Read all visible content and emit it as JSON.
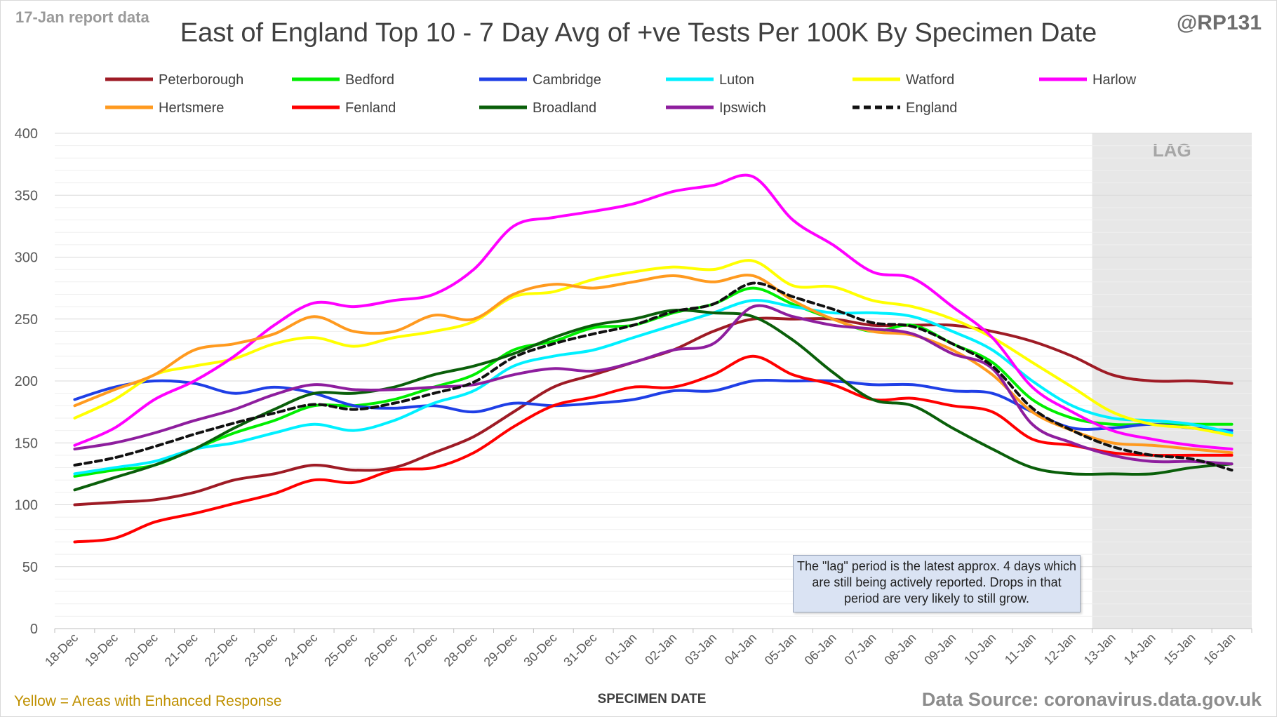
{
  "header": {
    "report_label": "17-Jan report data",
    "handle": "@RP131",
    "title": "East of England Top 10 - 7 Day Avg of +ve Tests Per 100K By Specimen Date"
  },
  "footer": {
    "note": "Yellow = Areas with Enhanced Response",
    "source": "Data Source: coronavirus.data.gov.uk"
  },
  "annotation": {
    "lag_label": "LAG",
    "lag_note": "The \"lag\" period is the latest approx. 4 days which are still being actively reported.  Drops in that period are very likely to still grow."
  },
  "chart_data": {
    "type": "line",
    "title": "East of England Top 10 - 7 Day Avg of +ve Tests Per 100K By Specimen Date",
    "xlabel": "SPECIMEN DATE",
    "ylabel": "",
    "ylim": [
      0,
      400
    ],
    "yticks": [
      0,
      50,
      100,
      150,
      200,
      250,
      300,
      350,
      400
    ],
    "grid": true,
    "legend_position": "top",
    "lag_period": [
      "13-Jan",
      "16-Jan"
    ],
    "categories": [
      "18-Dec",
      "19-Dec",
      "20-Dec",
      "21-Dec",
      "22-Dec",
      "23-Dec",
      "24-Dec",
      "25-Dec",
      "26-Dec",
      "27-Dec",
      "28-Dec",
      "29-Dec",
      "30-Dec",
      "31-Dec",
      "01-Jan",
      "02-Jan",
      "03-Jan",
      "04-Jan",
      "05-Jan",
      "06-Jan",
      "07-Jan",
      "08-Jan",
      "09-Jan",
      "10-Jan",
      "11-Jan",
      "12-Jan",
      "13-Jan",
      "14-Jan",
      "15-Jan",
      "16-Jan"
    ],
    "series": [
      {
        "name": "Peterborough",
        "color": "#9e1b25",
        "dashed": false,
        "values": [
          100,
          102,
          104,
          110,
          120,
          125,
          132,
          128,
          130,
          142,
          155,
          175,
          195,
          205,
          215,
          225,
          240,
          250,
          250,
          250,
          245,
          245,
          245,
          240,
          232,
          220,
          205,
          200,
          200,
          198
        ]
      },
      {
        "name": "Bedford",
        "color": "#00ee00",
        "dashed": false,
        "values": [
          123,
          128,
          132,
          145,
          158,
          168,
          180,
          180,
          185,
          195,
          205,
          225,
          232,
          243,
          245,
          255,
          262,
          275,
          262,
          250,
          240,
          245,
          230,
          215,
          185,
          170,
          165,
          165,
          165,
          165
        ]
      },
      {
        "name": "Cambridge",
        "color": "#1f3fe6",
        "dashed": false,
        "values": [
          185,
          195,
          200,
          198,
          190,
          195,
          190,
          180,
          178,
          180,
          175,
          182,
          180,
          182,
          185,
          192,
          192,
          200,
          200,
          200,
          197,
          197,
          192,
          190,
          175,
          162,
          162,
          165,
          162,
          160
        ]
      },
      {
        "name": "Luton",
        "color": "#00f0ff",
        "dashed": false,
        "values": [
          125,
          130,
          135,
          145,
          150,
          158,
          165,
          160,
          168,
          182,
          192,
          212,
          220,
          225,
          235,
          245,
          255,
          265,
          260,
          255,
          255,
          252,
          240,
          225,
          200,
          180,
          170,
          168,
          165,
          158
        ]
      },
      {
        "name": "Watford",
        "color": "#ffff00",
        "dashed": false,
        "values": [
          170,
          185,
          205,
          212,
          218,
          230,
          235,
          228,
          235,
          240,
          248,
          268,
          272,
          282,
          288,
          292,
          290,
          297,
          277,
          276,
          265,
          260,
          250,
          235,
          215,
          195,
          175,
          165,
          162,
          156
        ]
      },
      {
        "name": "Harlow",
        "color": "#ff00ff",
        "dashed": false,
        "values": [
          148,
          162,
          185,
          200,
          220,
          245,
          263,
          260,
          265,
          270,
          290,
          325,
          332,
          337,
          343,
          353,
          358,
          365,
          330,
          310,
          288,
          283,
          260,
          235,
          195,
          175,
          160,
          153,
          148,
          145
        ]
      },
      {
        "name": "Hertsmere",
        "color": "#ff9a1f",
        "dashed": false,
        "values": [
          180,
          193,
          205,
          225,
          230,
          238,
          252,
          240,
          240,
          253,
          250,
          270,
          278,
          275,
          280,
          285,
          280,
          285,
          265,
          250,
          240,
          237,
          225,
          205,
          175,
          160,
          150,
          148,
          145,
          142
        ]
      },
      {
        "name": "Fenland",
        "color": "#ff0000",
        "dashed": false,
        "values": [
          70,
          73,
          86,
          93,
          101,
          109,
          120,
          118,
          128,
          130,
          142,
          163,
          180,
          187,
          195,
          195,
          205,
          220,
          205,
          197,
          185,
          186,
          180,
          175,
          153,
          148,
          142,
          140,
          140,
          140
        ]
      },
      {
        "name": "Broadland",
        "color": "#0a5f0a",
        "dashed": false,
        "values": [
          112,
          122,
          132,
          145,
          162,
          177,
          190,
          190,
          195,
          205,
          212,
          222,
          235,
          245,
          250,
          257,
          255,
          252,
          233,
          207,
          185,
          180,
          162,
          145,
          130,
          125,
          125,
          125,
          130,
          133
        ]
      },
      {
        "name": "Ipswich",
        "color": "#8e1e9e",
        "dashed": false,
        "values": [
          145,
          150,
          158,
          168,
          177,
          189,
          197,
          193,
          193,
          195,
          197,
          205,
          210,
          208,
          215,
          225,
          230,
          260,
          252,
          245,
          242,
          238,
          222,
          210,
          165,
          150,
          140,
          135,
          135,
          133
        ]
      },
      {
        "name": "England",
        "color": "#111111",
        "dashed": true,
        "values": [
          132,
          138,
          147,
          157,
          166,
          174,
          181,
          177,
          182,
          190,
          199,
          219,
          230,
          238,
          245,
          256,
          262,
          279,
          268,
          258,
          247,
          244,
          230,
          212,
          178,
          160,
          147,
          140,
          137,
          128
        ]
      }
    ]
  }
}
